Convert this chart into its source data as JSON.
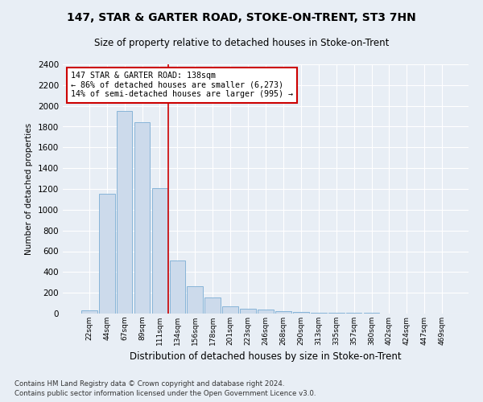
{
  "title": "147, STAR & GARTER ROAD, STOKE-ON-TRENT, ST3 7HN",
  "subtitle": "Size of property relative to detached houses in Stoke-on-Trent",
  "xlabel": "Distribution of detached houses by size in Stoke-on-Trent",
  "ylabel": "Number of detached properties",
  "footnote1": "Contains HM Land Registry data © Crown copyright and database right 2024.",
  "footnote2": "Contains public sector information licensed under the Open Government Licence v3.0.",
  "bar_labels": [
    "22sqm",
    "44sqm",
    "67sqm",
    "89sqm",
    "111sqm",
    "134sqm",
    "156sqm",
    "178sqm",
    "201sqm",
    "223sqm",
    "246sqm",
    "268sqm",
    "290sqm",
    "313sqm",
    "335sqm",
    "357sqm",
    "380sqm",
    "402sqm",
    "424sqm",
    "447sqm",
    "469sqm"
  ],
  "bar_values": [
    30,
    1150,
    1950,
    1840,
    1210,
    510,
    265,
    155,
    70,
    50,
    35,
    25,
    15,
    10,
    8,
    5,
    4,
    3,
    2,
    2,
    2
  ],
  "bar_color": "#ccdaeb",
  "bar_edge_color": "#7aadd4",
  "background_color": "#e8eef5",
  "ylim": [
    0,
    2400
  ],
  "yticks": [
    0,
    200,
    400,
    600,
    800,
    1000,
    1200,
    1400,
    1600,
    1800,
    2000,
    2200,
    2400
  ],
  "vline_x_index": 4.5,
  "vline_color": "#cc0000",
  "annotation_title": "147 STAR & GARTER ROAD: 138sqm",
  "annotation_line1": "← 86% of detached houses are smaller (6,273)",
  "annotation_line2": "14% of semi-detached houses are larger (995) →",
  "annotation_box_color": "#ffffff",
  "annotation_box_edge_color": "#cc0000"
}
